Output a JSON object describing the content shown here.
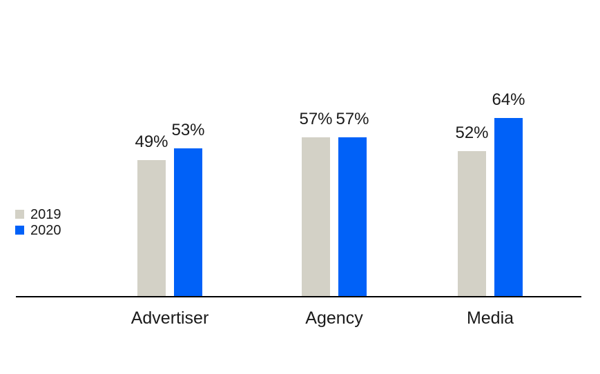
{
  "chart_data": {
    "type": "bar",
    "categories": [
      "Advertiser",
      "Agency",
      "Media"
    ],
    "series": [
      {
        "name": "2019",
        "color": "#D3D1C6",
        "values": [
          49,
          57,
          52
        ]
      },
      {
        "name": "2020",
        "color": "#0061F8",
        "values": [
          53,
          57,
          64
        ]
      }
    ],
    "value_suffix": "%",
    "data_labels": [
      "49%",
      "53%",
      "57%",
      "57%",
      "52%",
      "64%"
    ],
    "title": "",
    "xlabel": "",
    "ylabel": "",
    "ylim": [
      0,
      100
    ],
    "grid": false,
    "legend_position": "middle-left",
    "axis_color": "#000000",
    "text_color": "#1a1a1a",
    "background_color": "#ffffff"
  }
}
